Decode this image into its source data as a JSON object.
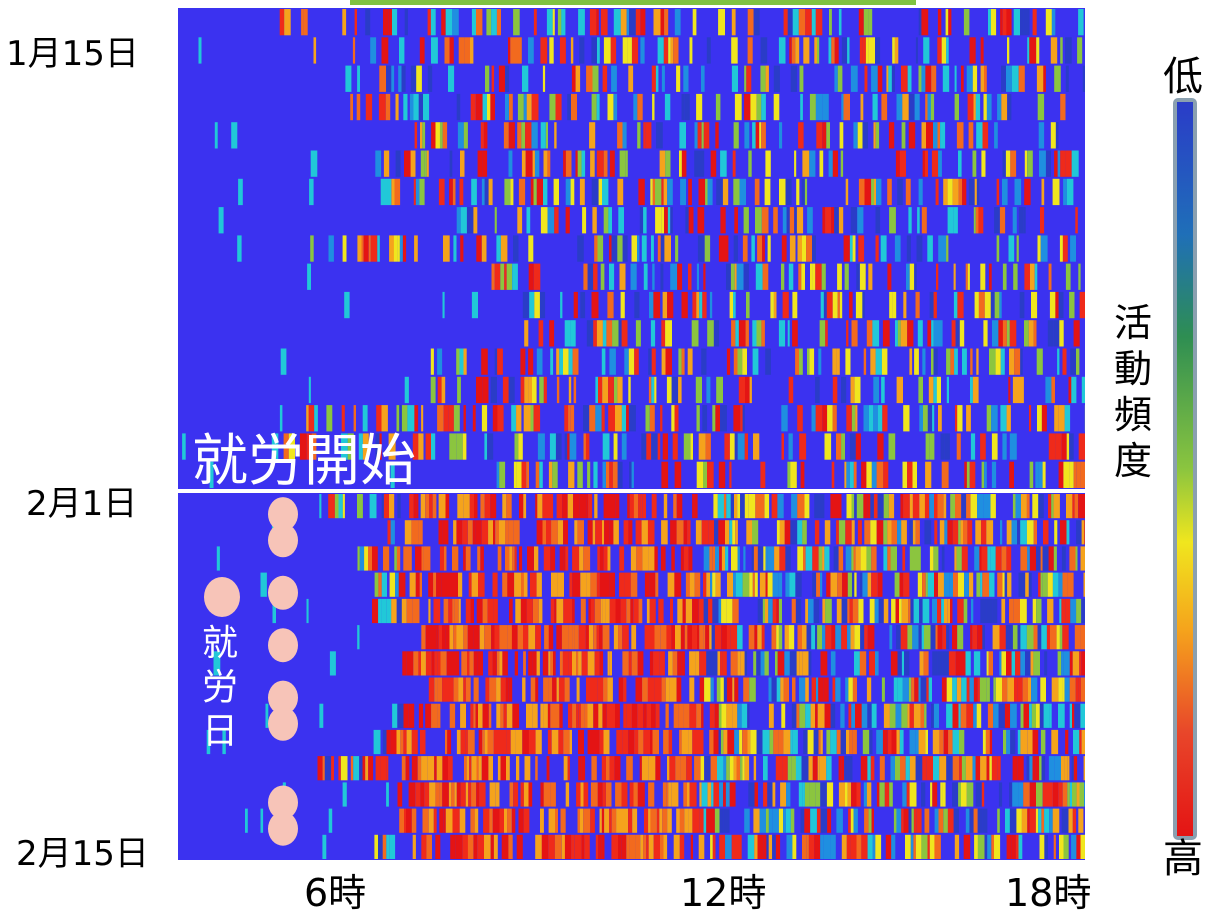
{
  "chart_data": {
    "type": "heatmap",
    "title": "",
    "xlabel": "",
    "ylabel": "",
    "x_ticks": [
      "6時",
      "12時",
      "18時"
    ],
    "y_ticks": [
      "1月15日",
      "2月1日",
      "2月15日"
    ],
    "rows": 31,
    "colorbar": {
      "label": "活動頻度",
      "low_label": "低",
      "high_label": "高",
      "colors": [
        "#2a3cc8",
        "#1f7fb0",
        "#2e8e52",
        "#8bc53f",
        "#f0e61e",
        "#f5a31c",
        "#e8462a",
        "#e41414"
      ]
    },
    "annotations": {
      "work_start": "就労開始",
      "work_days": "就労日"
    },
    "work_day_rows_after_feb1": [
      0,
      1,
      3,
      5,
      7,
      8,
      11,
      12
    ],
    "grid": false
  }
}
